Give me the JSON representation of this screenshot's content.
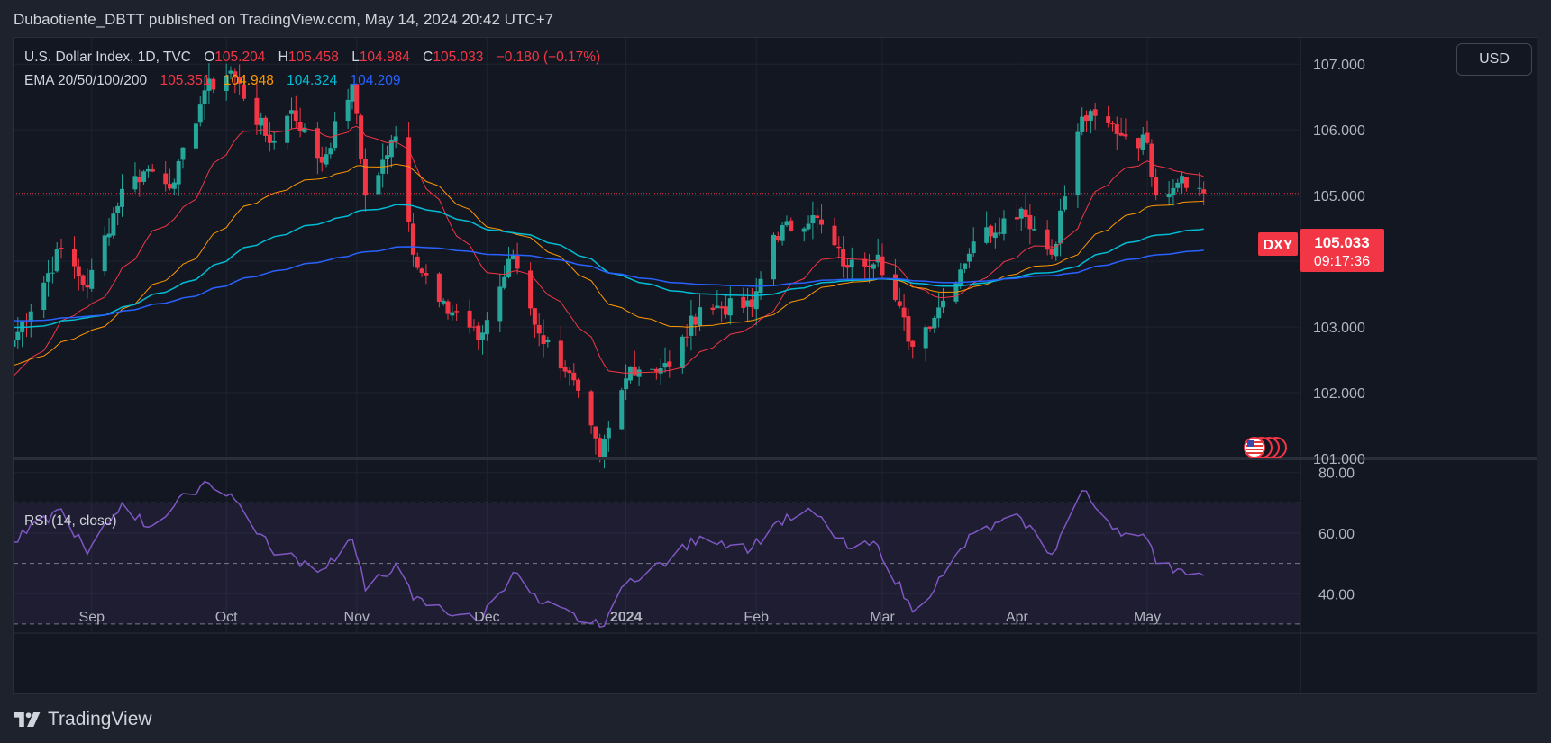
{
  "header": {
    "published_line": "Dubaotiente_DBTT published on TradingView.com, May 14, 2024 20:42 UTC+7"
  },
  "legend": {
    "symbol": "U.S. Dollar Index, 1D, TVC",
    "o_label": "O",
    "o_value": "105.204",
    "h_label": "H",
    "h_value": "105.458",
    "l_label": "L",
    "l_value": "104.984",
    "c_label": "C",
    "c_value": "105.033",
    "change": "−0.180 (−0.17%)",
    "ema_label": "EMA 20/50/100/200",
    "ema20": "105.351",
    "ema50": "104.948",
    "ema100": "104.324",
    "ema200": "104.209",
    "rsi_label": "RSI (14, close)"
  },
  "currency_button": "USD",
  "price_tag": {
    "symbol": "DXY",
    "price": "105.033",
    "countdown": "09:17:36"
  },
  "footer": {
    "brand": "TradingView"
  },
  "colors": {
    "up": "#26a69a",
    "down": "#f23645",
    "ema20": "#f23645",
    "ema50": "#ff9800",
    "ema100": "#00bcd4",
    "ema200": "#2962ff",
    "rsi": "#7e57c2"
  },
  "chart_data": {
    "type": "candlestick",
    "symbol": "DXY",
    "timeframe": "1D",
    "y_ticks": [
      "107.000",
      "106.000",
      "105.000",
      "104.000",
      "103.000",
      "102.000",
      "101.000"
    ],
    "ylim": [
      101.0,
      107.4
    ],
    "x_ticks": [
      "Sep",
      "Oct",
      "Nov",
      "Dec",
      "2024",
      "Feb",
      "Mar",
      "Apr",
      "May"
    ],
    "last_price": 105.033,
    "anchors": [
      {
        "date": "2023-08-14",
        "close": 102.8
      },
      {
        "date": "2023-08-25",
        "close": 104.2
      },
      {
        "date": "2023-08-31",
        "close": 103.6
      },
      {
        "date": "2023-09-08",
        "close": 105.1
      },
      {
        "date": "2023-09-14",
        "close": 105.4
      },
      {
        "date": "2023-09-20",
        "close": 105.2
      },
      {
        "date": "2023-09-27",
        "close": 106.6
      },
      {
        "date": "2023-10-03",
        "close": 106.9
      },
      {
        "date": "2023-10-12",
        "close": 105.8
      },
      {
        "date": "2023-10-17",
        "close": 106.3
      },
      {
        "date": "2023-10-24",
        "close": 105.5
      },
      {
        "date": "2023-10-31",
        "close": 106.7
      },
      {
        "date": "2023-11-03",
        "close": 105.0
      },
      {
        "date": "2023-11-10",
        "close": 105.9
      },
      {
        "date": "2023-11-14",
        "close": 104.1
      },
      {
        "date": "2023-11-21",
        "close": 103.4
      },
      {
        "date": "2023-11-29",
        "close": 102.8
      },
      {
        "date": "2023-12-07",
        "close": 104.1
      },
      {
        "date": "2023-12-13",
        "close": 102.9
      },
      {
        "date": "2023-12-20",
        "close": 102.3
      },
      {
        "date": "2023-12-27",
        "close": 101.0
      },
      {
        "date": "2024-01-03",
        "close": 102.4
      },
      {
        "date": "2024-01-12",
        "close": 102.4
      },
      {
        "date": "2024-01-19",
        "close": 103.3
      },
      {
        "date": "2024-01-31",
        "close": 103.3
      },
      {
        "date": "2024-02-05",
        "close": 104.4
      },
      {
        "date": "2024-02-14",
        "close": 104.7
      },
      {
        "date": "2024-02-22",
        "close": 103.9
      },
      {
        "date": "2024-02-29",
        "close": 104.1
      },
      {
        "date": "2024-03-08",
        "close": 102.7
      },
      {
        "date": "2024-03-15",
        "close": 103.4
      },
      {
        "date": "2024-03-22",
        "close": 104.3
      },
      {
        "date": "2024-04-02",
        "close": 104.8
      },
      {
        "date": "2024-04-09",
        "close": 104.1
      },
      {
        "date": "2024-04-16",
        "close": 106.2
      },
      {
        "date": "2024-04-22",
        "close": 106.1
      },
      {
        "date": "2024-04-26",
        "close": 105.9
      },
      {
        "date": "2024-05-01",
        "close": 105.8
      },
      {
        "date": "2024-05-03",
        "close": 105.0
      },
      {
        "date": "2024-05-09",
        "close": 105.3
      },
      {
        "date": "2024-05-14",
        "close": 105.033
      }
    ],
    "ema_last": {
      "ema20": 105.351,
      "ema50": 104.948,
      "ema100": 104.324,
      "ema200": 104.209
    },
    "rsi": {
      "ylim": [
        27,
        82
      ],
      "y_ticks": [
        "80.00",
        "60.00",
        "40.00"
      ],
      "levels": [
        70,
        50,
        30
      ],
      "anchors": [
        {
          "date": "2023-08-14",
          "v": 57
        },
        {
          "date": "2023-08-25",
          "v": 68
        },
        {
          "date": "2023-08-31",
          "v": 53
        },
        {
          "date": "2023-09-08",
          "v": 70
        },
        {
          "date": "2023-09-14",
          "v": 62
        },
        {
          "date": "2023-09-27",
          "v": 77
        },
        {
          "date": "2023-10-03",
          "v": 73
        },
        {
          "date": "2023-10-12",
          "v": 55
        },
        {
          "date": "2023-10-24",
          "v": 48
        },
        {
          "date": "2023-10-31",
          "v": 58
        },
        {
          "date": "2023-11-03",
          "v": 41
        },
        {
          "date": "2023-11-10",
          "v": 50
        },
        {
          "date": "2023-11-14",
          "v": 38
        },
        {
          "date": "2023-11-29",
          "v": 31
        },
        {
          "date": "2023-12-07",
          "v": 47
        },
        {
          "date": "2023-12-13",
          "v": 37
        },
        {
          "date": "2023-12-27",
          "v": 29
        },
        {
          "date": "2024-01-03",
          "v": 45
        },
        {
          "date": "2024-01-12",
          "v": 51
        },
        {
          "date": "2024-01-19",
          "v": 59
        },
        {
          "date": "2024-01-31",
          "v": 55
        },
        {
          "date": "2024-02-05",
          "v": 63
        },
        {
          "date": "2024-02-14",
          "v": 67
        },
        {
          "date": "2024-02-22",
          "v": 55
        },
        {
          "date": "2024-02-29",
          "v": 56
        },
        {
          "date": "2024-03-08",
          "v": 34
        },
        {
          "date": "2024-03-15",
          "v": 46
        },
        {
          "date": "2024-03-22",
          "v": 60
        },
        {
          "date": "2024-04-02",
          "v": 65
        },
        {
          "date": "2024-04-09",
          "v": 53
        },
        {
          "date": "2024-04-16",
          "v": 74
        },
        {
          "date": "2024-04-22",
          "v": 64
        },
        {
          "date": "2024-04-26",
          "v": 60
        },
        {
          "date": "2024-05-01",
          "v": 58
        },
        {
          "date": "2024-05-03",
          "v": 50
        },
        {
          "date": "2024-05-09",
          "v": 48
        },
        {
          "date": "2024-05-14",
          "v": 46
        }
      ]
    }
  }
}
